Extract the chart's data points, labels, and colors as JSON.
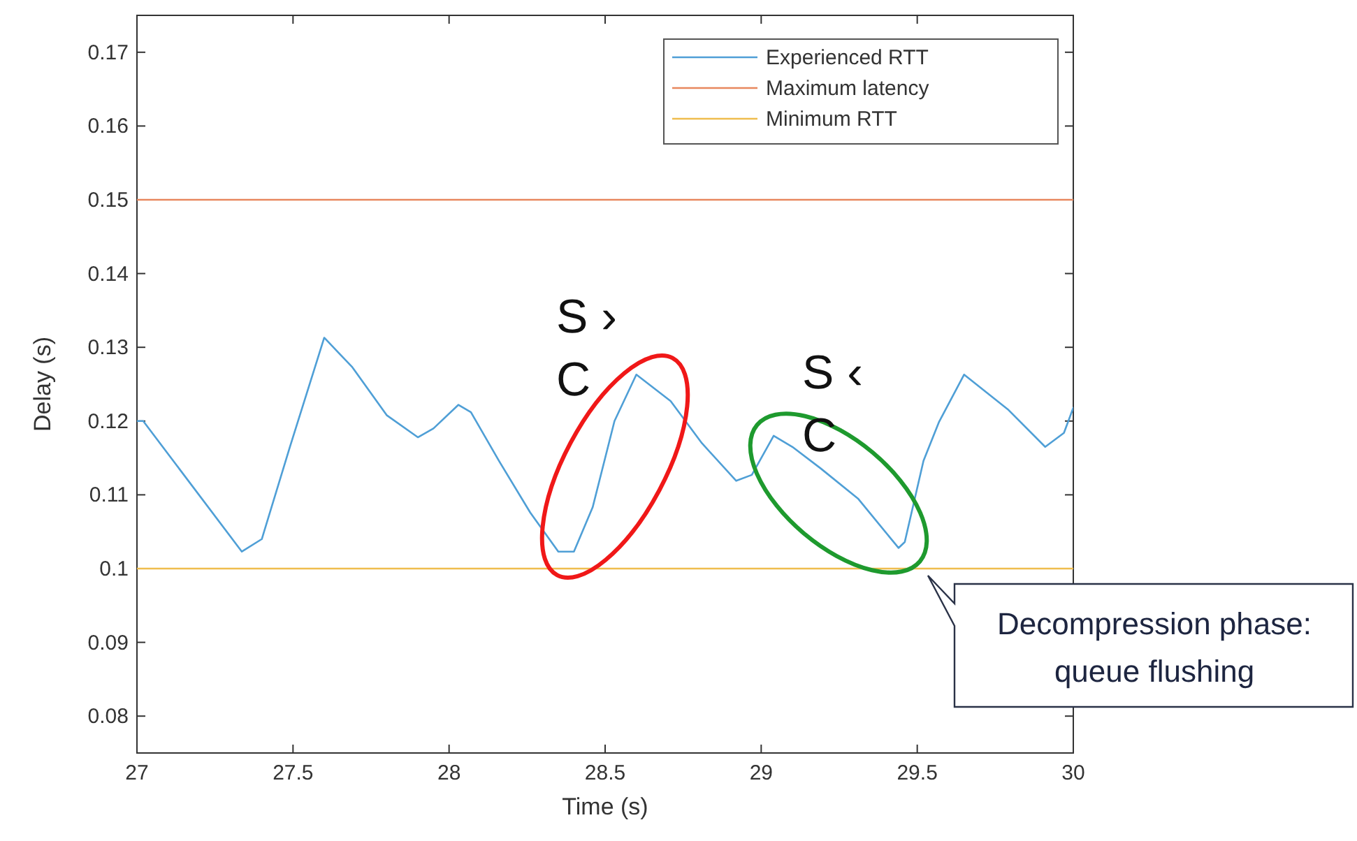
{
  "chart_data": {
    "type": "line",
    "xlabel": "Time (s)",
    "ylabel": "Delay (s)",
    "xlim": [
      27,
      30
    ],
    "ylim": [
      0.075,
      0.175
    ],
    "xticks": [
      27,
      27.5,
      28,
      28.5,
      29,
      29.5,
      30
    ],
    "yticks": [
      0.08,
      0.09,
      0.1,
      0.11,
      0.12,
      0.13,
      0.14,
      0.15,
      0.16,
      0.17
    ],
    "legend": "top right",
    "grid": false,
    "series": [
      {
        "name": "Experienced RTT",
        "color": "#4f9fd6",
        "x": [
          27,
          27.02,
          27.336,
          27.4,
          27.49,
          27.6,
          27.69,
          27.8,
          27.9,
          27.95,
          28.03,
          28.07,
          28.16,
          28.26,
          28.35,
          28.4,
          28.46,
          28.53,
          28.6,
          28.71,
          28.81,
          28.92,
          28.97,
          29.04,
          29.1,
          29.19,
          29.31,
          29.44,
          29.46,
          29.52,
          29.57,
          29.65,
          29.79,
          29.91,
          29.97,
          30
        ],
        "values": [
          0.12,
          0.12,
          0.1023,
          0.104,
          0.1165,
          0.1313,
          0.1273,
          0.1208,
          0.1178,
          0.119,
          0.1222,
          0.1212,
          0.1146,
          0.1076,
          0.1023,
          0.1023,
          0.1083,
          0.12,
          0.1263,
          0.1227,
          0.117,
          0.1119,
          0.1127,
          0.118,
          0.1165,
          0.1136,
          0.1095,
          0.1028,
          0.1036,
          0.1146,
          0.1199,
          0.1263,
          0.1216,
          0.1165,
          0.1184,
          0.1218
        ]
      },
      {
        "name": "Maximum latency",
        "color": "#e8875e",
        "x": [
          27,
          30
        ],
        "values": [
          0.15,
          0.15
        ]
      },
      {
        "name": "Minimum RTT",
        "color": "#efbd4e",
        "x": [
          27,
          30
        ],
        "values": [
          0.1,
          0.1
        ]
      }
    ],
    "annotations": [
      "S › C",
      "S ‹ C",
      "Decompression phase: queue flushing"
    ]
  }
}
